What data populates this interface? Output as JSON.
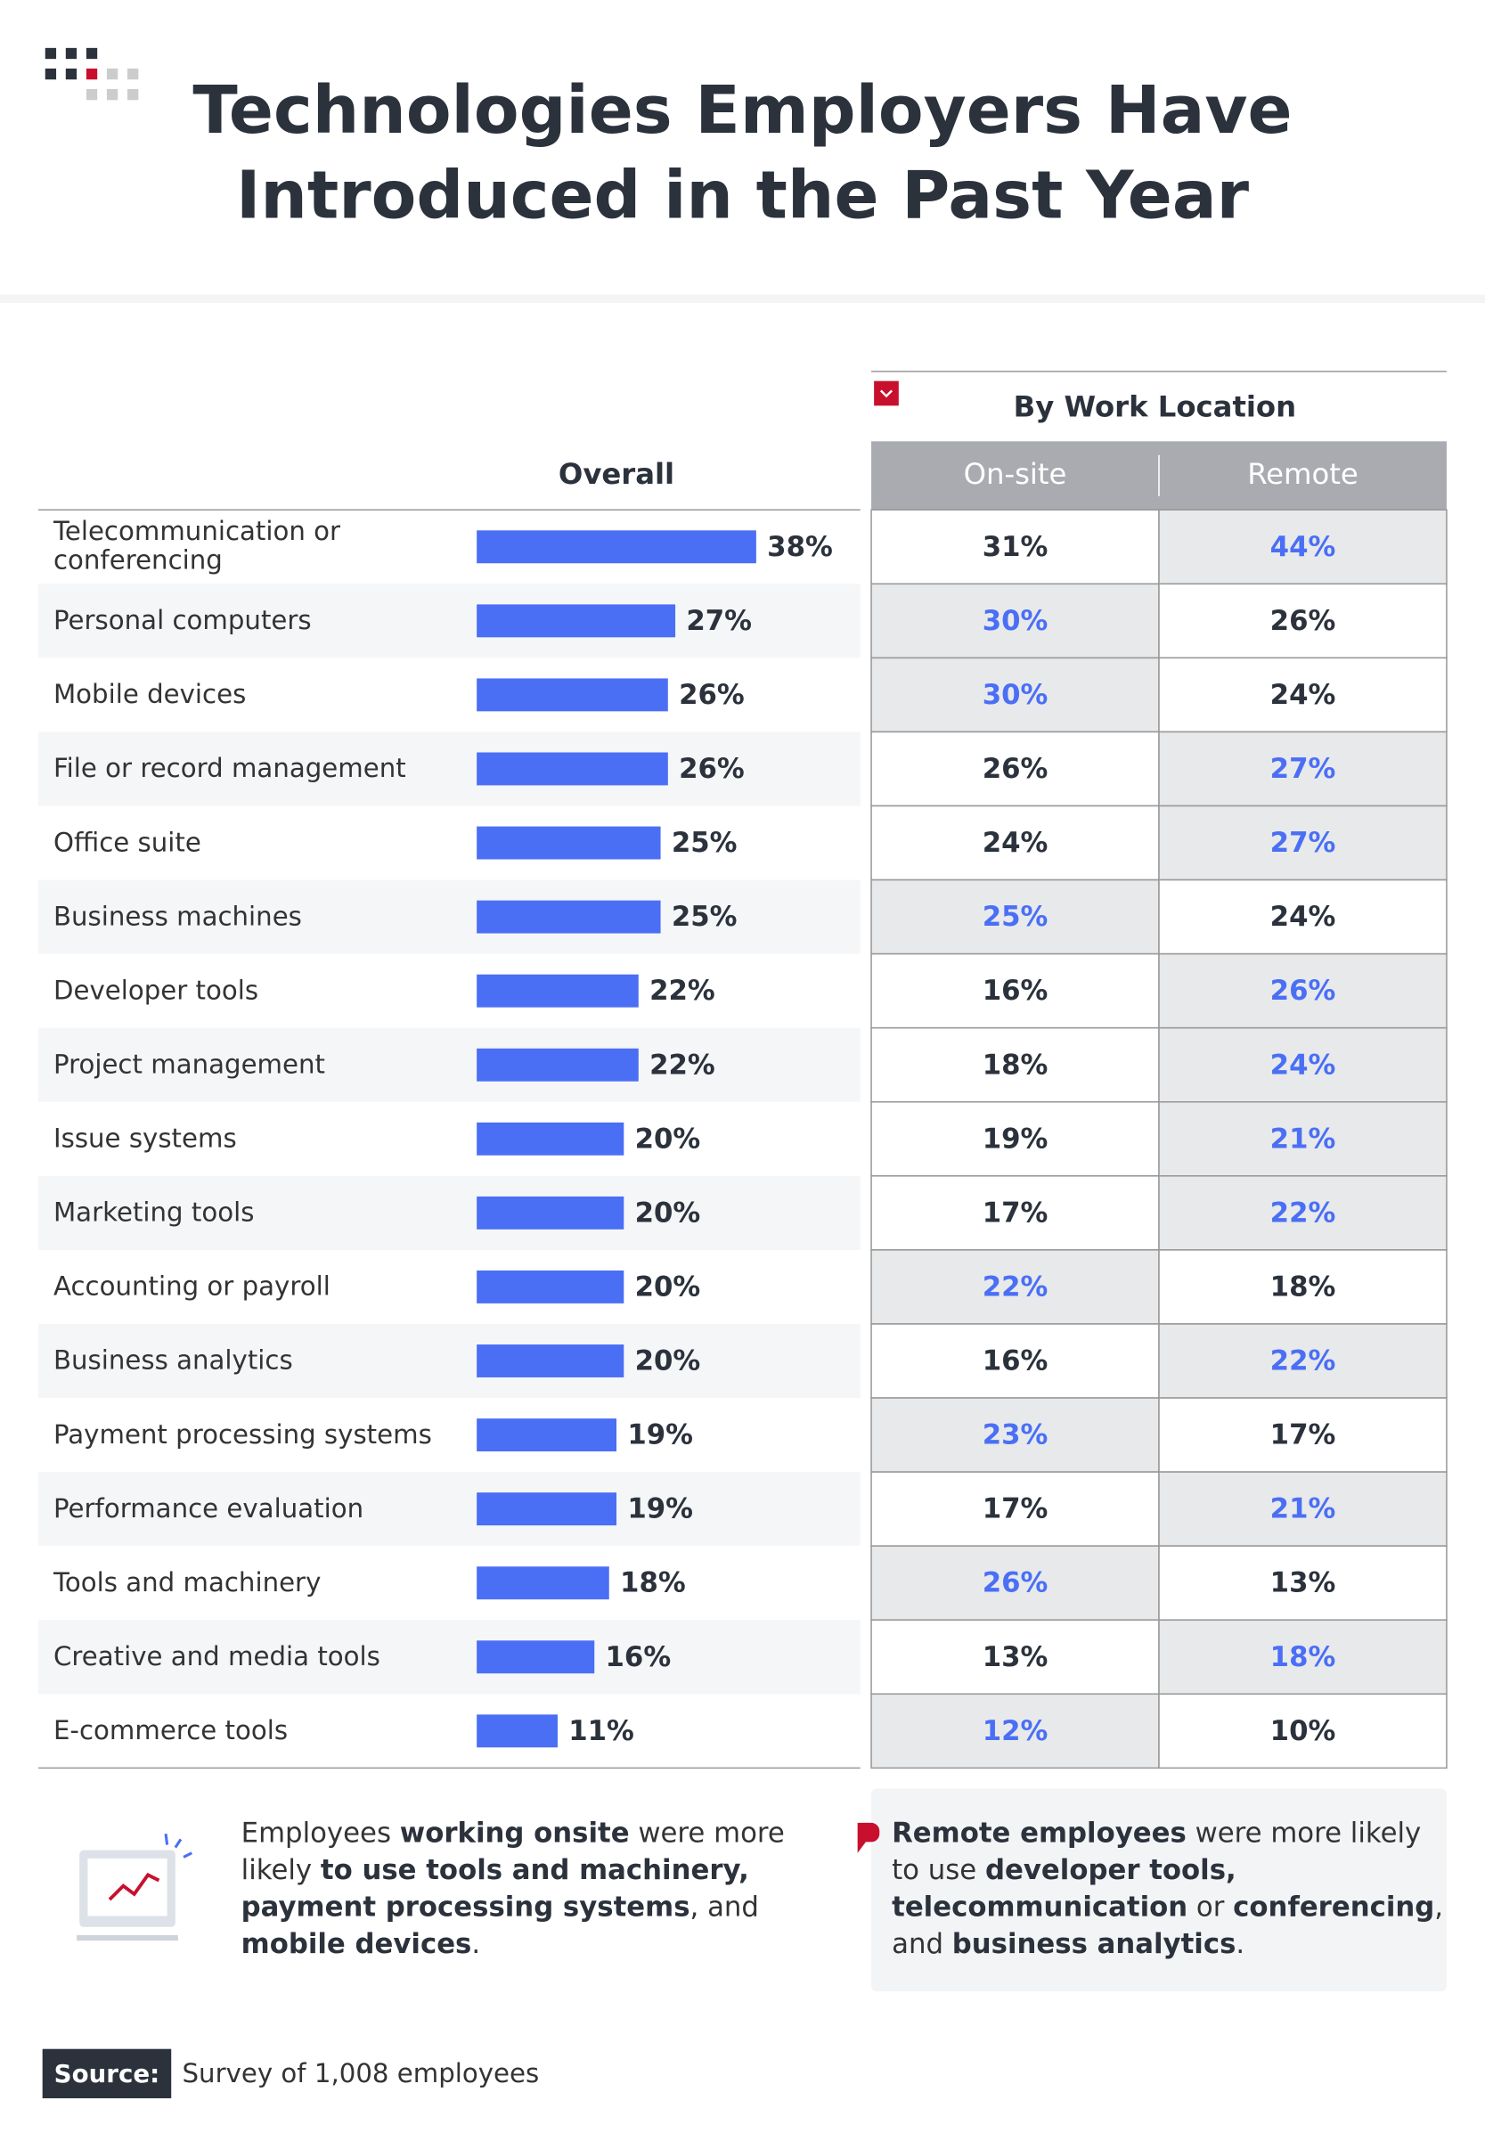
{
  "header": {
    "title": "Technologies Employers Have Introduced in the Past Year"
  },
  "chart_data": {
    "type": "bar",
    "orientation": "horizontal",
    "title": "Overall",
    "color": "#4a6ff5",
    "categories": [
      "Telecommunication or conferencing",
      "Personal computers",
      "Mobile devices",
      "File or record management",
      "Office suite",
      "Business machines",
      "Developer tools",
      "Project management",
      "Issue systems",
      "Marketing tools",
      "Accounting or payroll",
      "Business analytics",
      "Payment processing systems",
      "Performance evaluation",
      "Tools and machinery",
      "Creative and media tools",
      "E-commerce tools"
    ],
    "values": [
      38,
      27,
      26,
      26,
      25,
      25,
      22,
      22,
      20,
      20,
      20,
      20,
      19,
      19,
      18,
      16,
      11
    ],
    "value_labels": [
      "38%",
      "27%",
      "26%",
      "26%",
      "25%",
      "25%",
      "22%",
      "22%",
      "20%",
      "20%",
      "20%",
      "20%",
      "19%",
      "19%",
      "18%",
      "16%",
      "11%"
    ]
  },
  "table": {
    "title": "By Work Location",
    "columns": [
      "On-site",
      "Remote"
    ],
    "highlight_color": "#4a6ff5",
    "rows": [
      [
        "31%",
        "44%"
      ],
      [
        "30%",
        "26%"
      ],
      [
        "30%",
        "24%"
      ],
      [
        "26%",
        "27%"
      ],
      [
        "24%",
        "27%"
      ],
      [
        "25%",
        "24%"
      ],
      [
        "16%",
        "26%"
      ],
      [
        "18%",
        "24%"
      ],
      [
        "19%",
        "21%"
      ],
      [
        "17%",
        "22%"
      ],
      [
        "22%",
        "18%"
      ],
      [
        "16%",
        "22%"
      ],
      [
        "23%",
        "17%"
      ],
      [
        "17%",
        "21%"
      ],
      [
        "26%",
        "13%"
      ],
      [
        "13%",
        "18%"
      ],
      [
        "12%",
        "10%"
      ]
    ]
  },
  "notes": [
    [
      {
        "text": "Employees ",
        "bold": false
      },
      {
        "text": "working onsite",
        "bold": true
      },
      {
        "text": " were more likely ",
        "bold": false
      },
      {
        "text": "to use tools and machinery, payment processing systems",
        "bold": true
      },
      {
        "text": ", and ",
        "bold": false
      },
      {
        "text": "mobile devices",
        "bold": true
      },
      {
        "text": ".",
        "bold": false
      }
    ],
    [
      {
        "text": "Remote employees",
        "bold": true
      },
      {
        "text": " were more likely to use ",
        "bold": false
      },
      {
        "text": "developer tools, telecommunication",
        "bold": true
      },
      {
        "text": " or ",
        "bold": false
      },
      {
        "text": "conferencing",
        "bold": true
      },
      {
        "text": ", and ",
        "bold": false
      },
      {
        "text": "business analytics",
        "bold": true
      },
      {
        "text": ".",
        "bold": false
      }
    ]
  ],
  "source": {
    "label": "Source:",
    "text": "Survey of 1,008 employees"
  }
}
